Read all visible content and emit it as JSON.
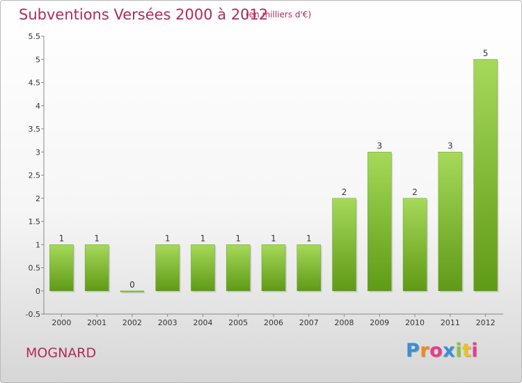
{
  "header": {
    "title": "Subventions Versées 2000 à 2012",
    "subtitle": "(en milliers d'€)"
  },
  "footer": {
    "commune": "MOGNARD",
    "logo": {
      "letters": [
        "P",
        "r",
        "o",
        "x",
        "i",
        "t",
        "i"
      ],
      "colors": [
        "#3a8fd6",
        "#f08a1c",
        "#e83c8c",
        "#3a8fd6",
        "#8cc63f",
        "#f0c020",
        "#e83c8c"
      ]
    }
  },
  "chart_data": {
    "type": "bar",
    "title": "Subventions Versées 2000 à 2012",
    "subtitle": "(en milliers d'€)",
    "categories": [
      "2000",
      "2001",
      "2002",
      "2003",
      "2004",
      "2005",
      "2006",
      "2007",
      "2008",
      "2009",
      "2010",
      "2011",
      "2012"
    ],
    "values": [
      1,
      1,
      0,
      1,
      1,
      1,
      1,
      1,
      2,
      3,
      2,
      3,
      5
    ],
    "data_labels": [
      "1",
      "1",
      "0",
      "1",
      "1",
      "1",
      "1",
      "1",
      "2",
      "3",
      "2",
      "3",
      "5"
    ],
    "ylim": [
      -0.5,
      5.5
    ],
    "yticks": [
      -0.5,
      0,
      0.5,
      1,
      1.5,
      2,
      2.5,
      3,
      3.5,
      4,
      4.5,
      5,
      5.5
    ],
    "ytick_labels": [
      "-0.5",
      "0",
      "0.5",
      "1",
      "1.5",
      "2",
      "2.5",
      "3",
      "3.5",
      "4",
      "4.5",
      "5",
      "5.5"
    ],
    "grid": false,
    "legend": "none",
    "bar_color_top": "#a6d95a",
    "bar_color_bottom": "#5f9a16"
  }
}
